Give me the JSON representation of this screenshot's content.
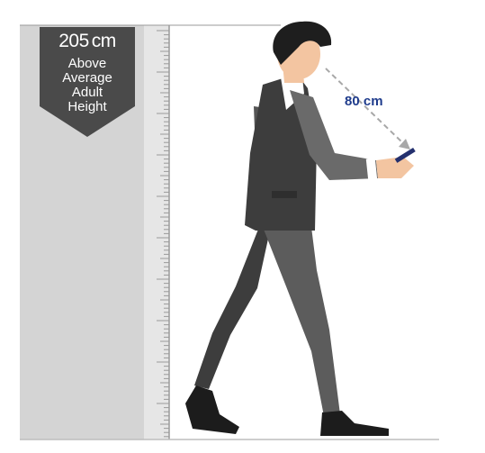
{
  "height_badge": {
    "value": "205",
    "unit": "cm",
    "caption_lines": [
      "Above",
      "Average",
      "Adult",
      "Height"
    ]
  },
  "distance": {
    "label": "80 cm"
  },
  "colors": {
    "wall": "#d4d4d4",
    "ruler": "#e6e6e6",
    "badge": "#4a4a4a",
    "suit": "#3d3d3d",
    "suit_light": "#5c5c5c",
    "skin": "#f3c5a1",
    "hair": "#1e1e1e",
    "distance_text": "#1f3c8c",
    "phone": "#24306e"
  },
  "icons": [
    "person-walking-with-phone",
    "height-ruler",
    "dashed-arrow"
  ]
}
